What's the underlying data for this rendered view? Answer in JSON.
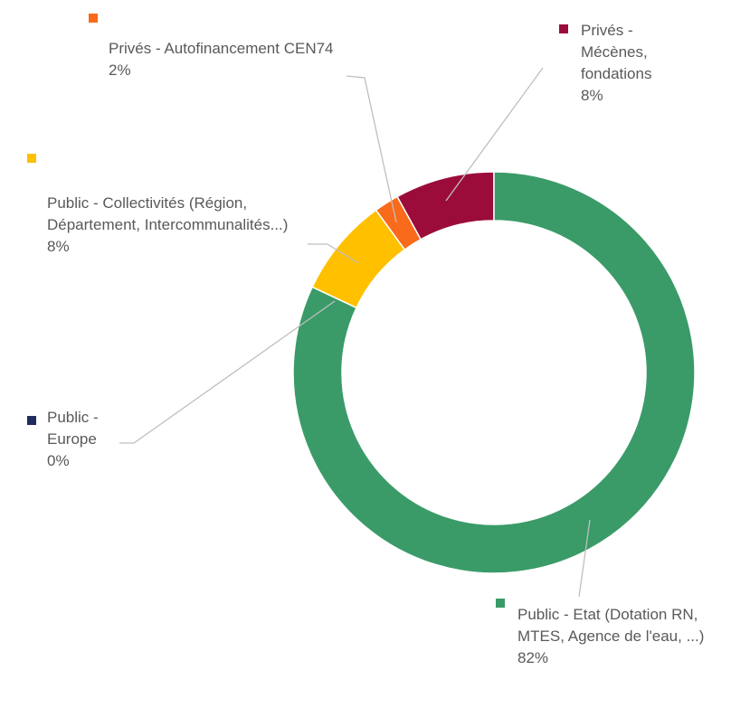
{
  "chart_data": {
    "type": "donut",
    "categories": [
      "Public - Etat (Dotation RN, MTES, Agence de l'eau, ...)",
      "Public - Europe",
      "Public - Collectivités (Région, Département, Intercommunalités...)",
      "Privés - Autofinancement CEN74",
      "Privés - Mécènes, fondations"
    ],
    "values": [
      82,
      0,
      8,
      2,
      8
    ],
    "value_labels": [
      "82%",
      "0%",
      "8%",
      "2%",
      "8%"
    ],
    "colors": [
      "#3a9b68",
      "#1f2d5c",
      "#ffc000",
      "#f96a1b",
      "#9b0c3a"
    ]
  }
}
